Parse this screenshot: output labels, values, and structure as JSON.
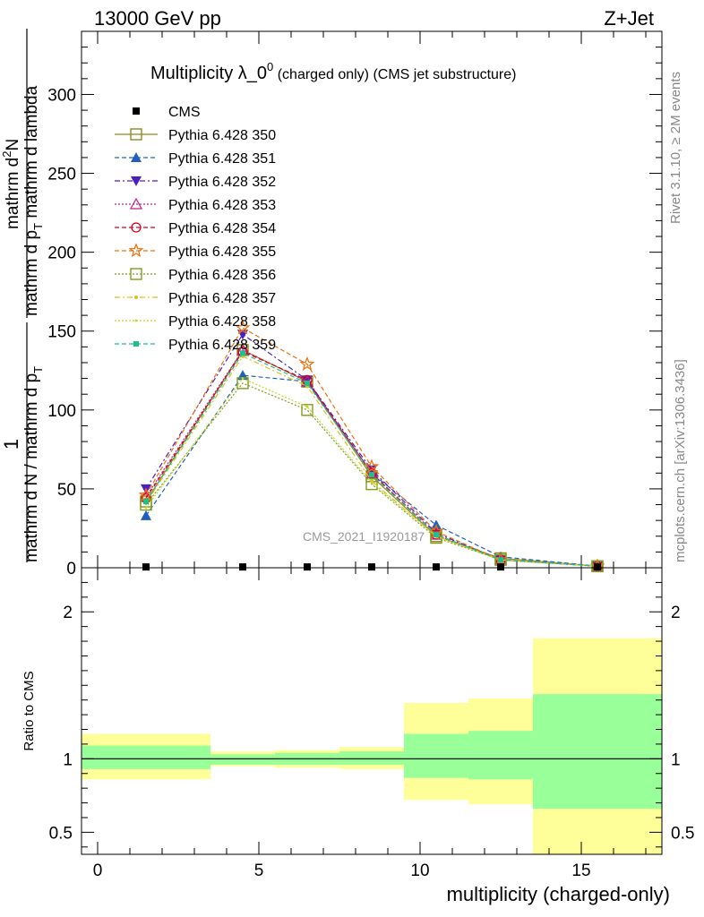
{
  "header": {
    "left": "13000 GeV pp",
    "right": "Z+Jet"
  },
  "title": {
    "main": "Multiplicity λ_0",
    "sup": "0",
    "sub": " (charged only) (CMS jet substructure)"
  },
  "side_labels": {
    "rivet": "Rivet 3.1.10, ≥ 2M events",
    "mcplots": "mcplots.cern.ch [arXiv:1306.3436]"
  },
  "watermark": "CMS_2021_I1920187",
  "ylabel_main": {
    "numerator_1": "1",
    "denominator_1": "mathrm d N / mathrm d p",
    "denominator_1_sub": "T",
    "numerator_2": "mathrm d",
    "numerator_2_sup": "2",
    "numerator_2_tail": "N",
    "denominator_2": "mathrm d p",
    "denominator_2_sub": "T",
    "denominator_2_tail": " mathrm d lambda"
  },
  "ratio_ylabel": "Ratio to CMS",
  "xlabel": "multiplicity (charged-only)",
  "colors": {
    "green_band": "#99ff99",
    "yellow_band": "#ffff99",
    "cms": "#000000"
  },
  "chart_data": [
    {
      "type": "line",
      "panel": "main",
      "ylim": [
        0,
        340
      ],
      "xlim": [
        -0.5,
        17.5
      ],
      "yticks": [
        0,
        50,
        100,
        150,
        200,
        250,
        300
      ],
      "x": [
        1.5,
        4.5,
        6.5,
        8.5,
        10.5,
        12.5,
        15.5
      ],
      "series": [
        {
          "name": "CMS",
          "color": "#000000",
          "marker": "square-filled",
          "dash": "none",
          "values": [
            0.5,
            0.5,
            0.5,
            0.5,
            0.5,
            0.5,
            0.5
          ]
        },
        {
          "name": "Pythia 6.428 350",
          "color": "#8b8b1e",
          "marker": "square-open",
          "dash": "solid",
          "values": [
            42,
            138,
            118,
            58,
            20,
            6,
            1
          ]
        },
        {
          "name": "Pythia 6.428 351",
          "color": "#1f5fbf",
          "marker": "triangle-up-filled",
          "dash": "dashed",
          "values": [
            33,
            122,
            118,
            60,
            27,
            7,
            1
          ]
        },
        {
          "name": "Pythia 6.428 352",
          "color": "#4b1fbf",
          "marker": "triangle-down-filled",
          "dash": "dashdot",
          "values": [
            50,
            148,
            119,
            62,
            22,
            5,
            1
          ]
        },
        {
          "name": "Pythia 6.428 353",
          "color": "#bf1f8f",
          "marker": "triangle-up-open",
          "dash": "dotted",
          "values": [
            45,
            138,
            118,
            60,
            21,
            5,
            1
          ]
        },
        {
          "name": "Pythia 6.428 354",
          "color": "#d6001c",
          "marker": "circle-open",
          "dash": "dashed",
          "values": [
            44,
            137,
            119,
            60,
            21,
            5,
            1
          ]
        },
        {
          "name": "Pythia 6.428 355",
          "color": "#f07010",
          "marker": "star-open",
          "dash": "dashed",
          "values": [
            46,
            152,
            129,
            64,
            23,
            5,
            1
          ]
        },
        {
          "name": "Pythia 6.428 356",
          "color": "#7f9e1e",
          "marker": "square-open",
          "dash": "dotted",
          "values": [
            40,
            117,
            100,
            53,
            19,
            5,
            1
          ]
        },
        {
          "name": "Pythia 6.428 357",
          "color": "#d9c21e",
          "marker": "dot",
          "dash": "dashdot",
          "values": [
            41,
            134,
            115,
            55,
            20,
            5,
            1
          ]
        },
        {
          "name": "Pythia 6.428 358",
          "color": "#c2d91e",
          "marker": "dot-small",
          "dash": "dotted",
          "values": [
            38,
            120,
            102,
            54,
            20,
            5,
            1
          ]
        },
        {
          "name": "Pythia 6.428 359",
          "color": "#1ebf8f",
          "marker": "square-filled-small",
          "dash": "dashed",
          "values": [
            42,
            136,
            117,
            59,
            21,
            5,
            1
          ]
        }
      ]
    },
    {
      "type": "area",
      "panel": "ratio",
      "ylim": [
        0.35,
        2.3
      ],
      "xlim": [
        -0.5,
        17.5
      ],
      "xticks": [
        0,
        5,
        10,
        15
      ],
      "yticks": [
        0.5,
        1,
        2
      ],
      "bins": [
        {
          "x_low": -0.5,
          "x_high": 3.5,
          "green": [
            0.93,
            1.09
          ],
          "yellow": [
            0.86,
            1.17
          ]
        },
        {
          "x_low": 3.5,
          "x_high": 5.5,
          "green": [
            0.96,
            1.03
          ],
          "yellow": [
            0.95,
            1.05
          ]
        },
        {
          "x_low": 5.5,
          "x_high": 7.5,
          "green": [
            0.96,
            1.04
          ],
          "yellow": [
            0.94,
            1.06
          ]
        },
        {
          "x_low": 7.5,
          "x_high": 9.5,
          "green": [
            0.96,
            1.05
          ],
          "yellow": [
            0.93,
            1.08
          ]
        },
        {
          "x_low": 9.5,
          "x_high": 11.5,
          "green": [
            0.87,
            1.17
          ],
          "yellow": [
            0.72,
            1.38
          ]
        },
        {
          "x_low": 11.5,
          "x_high": 13.5,
          "green": [
            0.86,
            1.19
          ],
          "yellow": [
            0.69,
            1.41
          ]
        },
        {
          "x_low": 13.5,
          "x_high": 17.5,
          "green": [
            0.66,
            1.44
          ],
          "yellow": [
            0.35,
            1.82
          ]
        }
      ],
      "reference": 1
    }
  ]
}
